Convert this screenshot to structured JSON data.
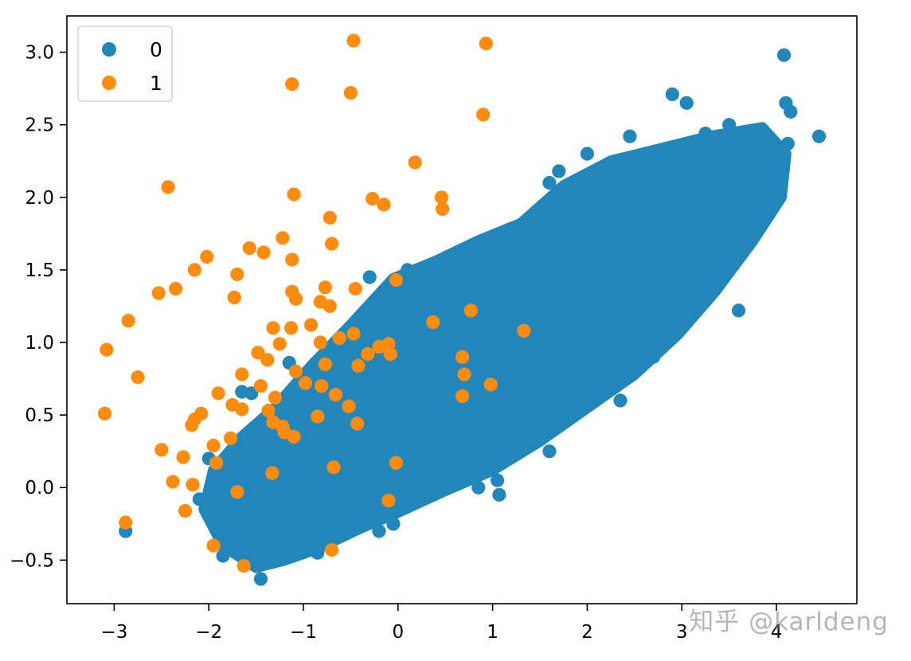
{
  "chart_data": {
    "type": "scatter",
    "title": "",
    "xlabel": "",
    "ylabel": "",
    "xlim": [
      -3.5,
      4.85
    ],
    "ylim": [
      -0.8,
      3.25
    ],
    "xticks": [
      -3,
      -2,
      -1,
      0,
      1,
      2,
      3,
      4
    ],
    "xtick_labels": [
      "−3",
      "−2",
      "−1",
      "0",
      "1",
      "2",
      "3",
      "4"
    ],
    "yticks": [
      -0.5,
      0.0,
      0.5,
      1.0,
      1.5,
      2.0,
      2.5,
      3.0
    ],
    "ytick_labels": [
      "−0.5",
      "0.0",
      "0.5",
      "1.0",
      "1.5",
      "2.0",
      "2.5",
      "3.0"
    ],
    "grid": false,
    "legend_position": "top-left",
    "series": [
      {
        "name": "0",
        "color": "#2187bb",
        "points": [
          [
            4.08,
            2.98
          ],
          [
            4.45,
            2.42
          ],
          [
            4.15,
            2.59
          ],
          [
            4.1,
            2.65
          ],
          [
            4.12,
            2.37
          ],
          [
            3.95,
            2.1
          ],
          [
            3.85,
            1.95
          ],
          [
            3.6,
            1.22
          ],
          [
            2.9,
            2.71
          ],
          [
            3.05,
            2.65
          ],
          [
            3.25,
            2.44
          ],
          [
            3.5,
            2.5
          ],
          [
            2.45,
            2.42
          ],
          [
            2.0,
            2.3
          ],
          [
            1.7,
            2.18
          ],
          [
            1.6,
            2.1
          ],
          [
            1.35,
            0.4
          ],
          [
            2.15,
            0.75
          ],
          [
            2.35,
            0.6
          ],
          [
            2.7,
            0.9
          ],
          [
            3.2,
            1.55
          ],
          [
            3.4,
            1.45
          ],
          [
            2.8,
            1.15
          ],
          [
            1.6,
            0.25
          ],
          [
            1.05,
            0.05
          ],
          [
            0.85,
            0.0
          ],
          [
            1.07,
            -0.05
          ],
          [
            0.65,
            0.1
          ],
          [
            0.05,
            -0.1
          ],
          [
            -0.05,
            -0.25
          ],
          [
            -0.2,
            -0.3
          ],
          [
            -0.6,
            -0.3
          ],
          [
            -0.85,
            -0.45
          ],
          [
            -1.15,
            -0.43
          ],
          [
            -1.3,
            -0.45
          ],
          [
            -1.45,
            -0.63
          ],
          [
            -1.6,
            -0.5
          ],
          [
            -1.7,
            -0.45
          ],
          [
            -1.85,
            -0.47
          ],
          [
            -2.1,
            -0.08
          ],
          [
            -2.0,
            0.2
          ],
          [
            -1.55,
            0.65
          ],
          [
            -1.65,
            0.66
          ],
          [
            -1.15,
            0.86
          ],
          [
            -0.3,
            1.45
          ],
          [
            -0.1,
            1.35
          ],
          [
            0.1,
            1.5
          ],
          [
            0.5,
            1.58
          ],
          [
            1.0,
            1.65
          ],
          [
            -2.88,
            -0.3
          ]
        ]
      },
      {
        "name": "1",
        "color": "#ff8c0e",
        "points": [
          [
            -0.47,
            3.08
          ],
          [
            0.93,
            3.06
          ],
          [
            -1.12,
            2.78
          ],
          [
            -0.5,
            2.72
          ],
          [
            0.9,
            2.57
          ],
          [
            0.18,
            2.24
          ],
          [
            -2.43,
            2.07
          ],
          [
            -1.1,
            2.02
          ],
          [
            -0.27,
            1.99
          ],
          [
            0.46,
            2.0
          ],
          [
            -0.15,
            1.95
          ],
          [
            0.47,
            1.92
          ],
          [
            -0.72,
            1.86
          ],
          [
            -1.22,
            1.72
          ],
          [
            -0.7,
            1.68
          ],
          [
            -1.57,
            1.65
          ],
          [
            -1.42,
            1.62
          ],
          [
            -2.02,
            1.59
          ],
          [
            -1.12,
            1.57
          ],
          [
            -2.15,
            1.5
          ],
          [
            -1.7,
            1.47
          ],
          [
            -0.02,
            1.43
          ],
          [
            -2.35,
            1.37
          ],
          [
            -2.53,
            1.34
          ],
          [
            -1.12,
            1.35
          ],
          [
            -0.77,
            1.38
          ],
          [
            -0.45,
            1.37
          ],
          [
            -1.08,
            1.3
          ],
          [
            -1.73,
            1.31
          ],
          [
            -0.82,
            1.28
          ],
          [
            -0.72,
            1.25
          ],
          [
            0.37,
            1.14
          ],
          [
            0.77,
            1.22
          ],
          [
            1.33,
            1.08
          ],
          [
            -2.85,
            1.15
          ],
          [
            -1.32,
            1.1
          ],
          [
            -1.13,
            1.1
          ],
          [
            -0.92,
            1.12
          ],
          [
            -0.47,
            1.06
          ],
          [
            -0.62,
            1.03
          ],
          [
            -0.82,
            1.0
          ],
          [
            -1.25,
            0.99
          ],
          [
            -1.48,
            0.93
          ],
          [
            -0.2,
            0.97
          ],
          [
            -0.1,
            0.99
          ],
          [
            -0.32,
            0.92
          ],
          [
            -0.08,
            0.92
          ],
          [
            -1.38,
            0.88
          ],
          [
            -3.08,
            0.95
          ],
          [
            -2.75,
            0.76
          ],
          [
            -1.65,
            0.78
          ],
          [
            -1.08,
            0.8
          ],
          [
            -0.77,
            0.85
          ],
          [
            -0.42,
            0.84
          ],
          [
            0.68,
            0.9
          ],
          [
            0.7,
            0.78
          ],
          [
            0.98,
            0.71
          ],
          [
            0.68,
            0.63
          ],
          [
            -1.45,
            0.7
          ],
          [
            -0.98,
            0.72
          ],
          [
            -0.81,
            0.7
          ],
          [
            -1.9,
            0.65
          ],
          [
            -1.3,
            0.62
          ],
          [
            -0.66,
            0.64
          ],
          [
            -0.52,
            0.56
          ],
          [
            -1.75,
            0.57
          ],
          [
            -1.65,
            0.54
          ],
          [
            -1.37,
            0.53
          ],
          [
            -0.85,
            0.49
          ],
          [
            -3.1,
            0.51
          ],
          [
            -2.08,
            0.51
          ],
          [
            -2.15,
            0.47
          ],
          [
            -2.18,
            0.43
          ],
          [
            -1.32,
            0.45
          ],
          [
            -1.22,
            0.42
          ],
          [
            -1.2,
            0.38
          ],
          [
            -1.1,
            0.35
          ],
          [
            -0.43,
            0.44
          ],
          [
            -1.77,
            0.34
          ],
          [
            -1.95,
            0.29
          ],
          [
            -2.5,
            0.26
          ],
          [
            -2.27,
            0.21
          ],
          [
            -1.92,
            0.17
          ],
          [
            -0.02,
            0.17
          ],
          [
            -0.68,
            0.14
          ],
          [
            -1.33,
            0.1
          ],
          [
            -2.38,
            0.04
          ],
          [
            -2.17,
            0.02
          ],
          [
            -1.7,
            -0.03
          ],
          [
            -0.1,
            -0.09
          ],
          [
            -2.25,
            -0.16
          ],
          [
            -2.88,
            -0.24
          ],
          [
            -1.95,
            -0.4
          ],
          [
            -0.7,
            -0.43
          ],
          [
            -1.63,
            -0.54
          ]
        ]
      }
    ]
  },
  "watermark_text": "知乎 @karldeng"
}
